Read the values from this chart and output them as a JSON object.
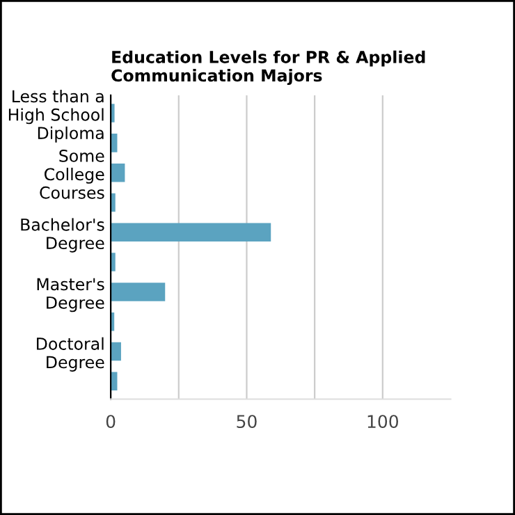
{
  "chart_data": {
    "type": "bar",
    "orientation": "horizontal",
    "title": "Education Levels for PR & Applied\nCommunication Majors",
    "categories": [
      "Less than a\nHigh School\nDiploma",
      null,
      "Some\nCollege\nCourses",
      null,
      "Bachelor's\nDegree",
      null,
      "Master's\nDegree",
      null,
      "Doctoral\nDegree",
      null
    ],
    "values": [
      1.4,
      2.4,
      5.2,
      1.7,
      58.9,
      1.7,
      20.0,
      1.3,
      3.8,
      2.4
    ],
    "color": "#5ba3c0",
    "xlim": [
      0,
      125
    ],
    "xticks": [
      0,
      {
        "value": 25,
        "label": null
      },
      50,
      {
        "value": 75,
        "label": null
      },
      100
    ],
    "grid": "x"
  }
}
